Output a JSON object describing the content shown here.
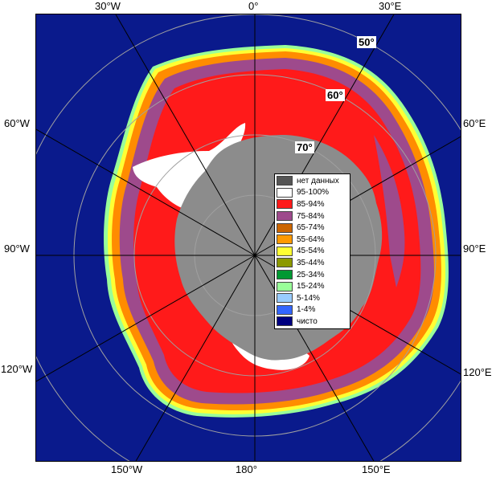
{
  "map": {
    "colors": {
      "ocean": "#0a1a8c",
      "land": "#8c8c8c",
      "ice_high": "#ff1a1a",
      "ice_mid": "#9e4a8c",
      "ice_edge_orange": "#ff8c00",
      "ice_edge_yellow": "#ffff33",
      "ice_edge_green": "#99ff99",
      "ice_full": "#ffffff",
      "grid": "#a0a0a0",
      "meridian": "#000000"
    },
    "longitude_labels": {
      "top": [
        "30°W",
        "0°",
        "30°E"
      ],
      "bottom": [
        "150°W",
        "180°",
        "150°E"
      ],
      "left": [
        "60°W",
        "90°W",
        "120°W"
      ],
      "right": [
        "60°E",
        "90°E",
        "120°E"
      ]
    },
    "latitude_labels": [
      "50°",
      "60°",
      "70°"
    ]
  },
  "legend": {
    "items": [
      {
        "label": "нет данных",
        "color": "#555555"
      },
      {
        "label": "95-100%",
        "color": "#ffffff"
      },
      {
        "label": "85-94%",
        "color": "#ff1a1a"
      },
      {
        "label": "75-84%",
        "color": "#9e4a8c"
      },
      {
        "label": "65-74%",
        "color": "#cc6600"
      },
      {
        "label": "55-64%",
        "color": "#ff9900"
      },
      {
        "label": "45-54%",
        "color": "#ffff33"
      },
      {
        "label": "35-44%",
        "color": "#8c9900"
      },
      {
        "label": "25-34%",
        "color": "#009933"
      },
      {
        "label": "15-24%",
        "color": "#99ff99"
      },
      {
        "label": "5-14%",
        "color": "#99ccff"
      },
      {
        "label": "1-4%",
        "color": "#3366ff"
      },
      {
        "label": "чисто",
        "color": "#000080"
      }
    ]
  }
}
